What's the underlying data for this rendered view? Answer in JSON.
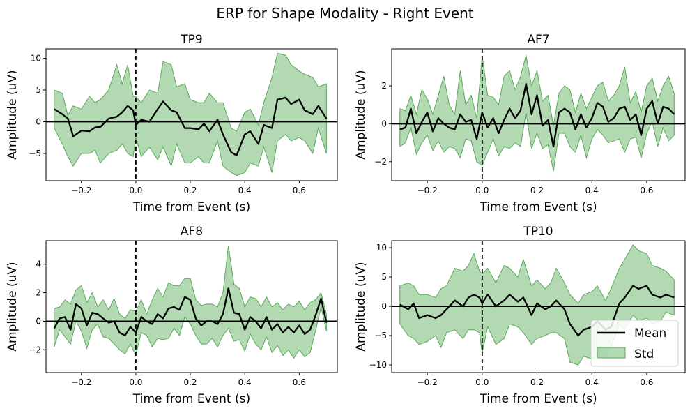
{
  "figure": {
    "suptitle": "ERP for Shape Modality - Right Event"
  },
  "legend": {
    "mean_label": "Mean",
    "std_label": "Std",
    "placement": "lower-right (TP10 panel)"
  },
  "colors": {
    "mean": "#000000",
    "std_fill": "#73b973",
    "std_edge": "#5aa85a",
    "zero_line": "#000000",
    "event_line": "#000000"
  },
  "chart_data": [
    {
      "type": "line",
      "title": "TP9",
      "xlabel": "Time from Event (s)",
      "ylabel": "Amplitude (uV)",
      "xlim": [
        -0.33,
        0.74
      ],
      "ylim": [
        -9.3,
        11.5
      ],
      "xticks": [
        -0.2,
        0.0,
        0.2,
        0.4,
        0.6
      ],
      "xtick_labels": [
        "−0.2",
        "0.0",
        "0.2",
        "0.4",
        "0.6"
      ],
      "yticks": [
        -5,
        0,
        5,
        10
      ],
      "ytick_labels": [
        "−5",
        "0",
        "5",
        "10"
      ],
      "event_line_x": 0.0,
      "zero_line_y": 0,
      "x": [
        -0.3,
        -0.27,
        -0.25,
        -0.23,
        -0.2,
        -0.17,
        -0.15,
        -0.13,
        -0.1,
        -0.07,
        -0.05,
        -0.03,
        -0.01,
        0.0,
        0.02,
        0.05,
        0.08,
        0.1,
        0.13,
        0.15,
        0.18,
        0.2,
        0.23,
        0.25,
        0.27,
        0.3,
        0.32,
        0.35,
        0.37,
        0.4,
        0.42,
        0.45,
        0.47,
        0.5,
        0.52,
        0.55,
        0.57,
        0.6,
        0.62,
        0.65,
        0.67,
        0.7
      ],
      "mean": [
        2.0,
        1.2,
        0.5,
        -2.3,
        -1.4,
        -1.5,
        -0.9,
        -0.8,
        0.5,
        0.8,
        1.5,
        2.5,
        1.8,
        -0.5,
        0.3,
        0.0,
        2.0,
        3.2,
        1.8,
        1.5,
        -1.0,
        -1.0,
        -1.2,
        -0.3,
        -1.5,
        0.3,
        -2.0,
        -4.8,
        -5.3,
        -2.0,
        -1.5,
        -3.5,
        -0.5,
        -1.0,
        3.5,
        3.8,
        2.8,
        3.5,
        1.8,
        1.2,
        2.5,
        0.5
      ],
      "upper": [
        5.0,
        4.5,
        1.0,
        2.5,
        2.0,
        4.0,
        3.0,
        3.5,
        5.0,
        9.0,
        6.0,
        9.0,
        4.0,
        4.0,
        3.0,
        5.0,
        4.5,
        9.5,
        9.0,
        5.5,
        6.0,
        3.5,
        3.0,
        3.0,
        4.5,
        3.0,
        3.0,
        -1.0,
        -1.5,
        1.5,
        2.0,
        -0.5,
        3.0,
        7.0,
        10.8,
        10.5,
        9.0,
        8.0,
        7.5,
        7.0,
        5.5,
        6.0
      ],
      "lower": [
        -1.0,
        -3.5,
        -5.5,
        -7.0,
        -5.0,
        -5.0,
        -4.5,
        -6.5,
        -5.0,
        -4.5,
        -3.5,
        -5.0,
        -5.5,
        -2.5,
        -5.5,
        -4.0,
        -6.0,
        -4.0,
        -7.0,
        -3.5,
        -6.5,
        -6.5,
        -5.5,
        -6.5,
        -6.5,
        -3.0,
        -7.0,
        -8.0,
        -8.5,
        -8.0,
        -6.5,
        -7.0,
        -4.0,
        -8.0,
        -3.0,
        -2.0,
        -3.0,
        -2.5,
        -3.0,
        -5.0,
        -1.0,
        -5.0
      ]
    },
    {
      "type": "line",
      "title": "AF7",
      "xlabel": "Time from Event (s)",
      "ylabel": "Amplitude (uV)",
      "xlim": [
        -0.33,
        0.74
      ],
      "ylim": [
        -3.0,
        3.95
      ],
      "xticks": [
        -0.2,
        0.0,
        0.2,
        0.4,
        0.6
      ],
      "xtick_labels": [
        "−0.2",
        "0.0",
        "0.2",
        "0.4",
        "0.6"
      ],
      "yticks": [
        -2,
        0,
        2
      ],
      "ytick_labels": [
        "−2",
        "0",
        "2"
      ],
      "event_line_x": 0.0,
      "zero_line_y": 0,
      "x": [
        -0.3,
        -0.28,
        -0.26,
        -0.24,
        -0.22,
        -0.2,
        -0.18,
        -0.16,
        -0.14,
        -0.12,
        -0.1,
        -0.08,
        -0.06,
        -0.04,
        -0.02,
        0.0,
        0.02,
        0.04,
        0.06,
        0.08,
        0.1,
        0.12,
        0.14,
        0.16,
        0.18,
        0.2,
        0.22,
        0.24,
        0.26,
        0.28,
        0.3,
        0.32,
        0.34,
        0.36,
        0.38,
        0.4,
        0.42,
        0.44,
        0.46,
        0.48,
        0.5,
        0.52,
        0.54,
        0.56,
        0.58,
        0.6,
        0.62,
        0.64,
        0.66,
        0.68,
        0.7
      ],
      "mean": [
        -0.3,
        -0.2,
        0.8,
        -0.5,
        0.1,
        0.6,
        -0.4,
        0.3,
        0.0,
        -0.2,
        -0.3,
        0.5,
        0.1,
        0.2,
        -0.8,
        0.6,
        -0.2,
        0.3,
        -0.5,
        0.2,
        0.8,
        0.3,
        0.7,
        2.1,
        0.5,
        1.5,
        -0.1,
        0.2,
        -1.2,
        0.6,
        0.8,
        0.6,
        -0.3,
        0.5,
        -0.2,
        0.3,
        1.1,
        0.9,
        0.1,
        0.3,
        0.8,
        0.9,
        0.2,
        0.5,
        -0.6,
        0.8,
        1.2,
        0.0,
        0.9,
        0.8,
        0.5
      ],
      "upper": [
        0.8,
        0.7,
        1.5,
        0.5,
        1.8,
        1.3,
        0.5,
        1.5,
        2.5,
        1.0,
        0.5,
        2.8,
        1.0,
        1.5,
        0.3,
        3.6,
        1.5,
        1.4,
        1.0,
        2.5,
        2.8,
        1.8,
        2.5,
        3.6,
        2.0,
        2.8,
        1.2,
        1.5,
        -0.1,
        1.6,
        2.0,
        1.8,
        0.6,
        1.6,
        0.8,
        1.4,
        2.0,
        2.2,
        1.2,
        1.5,
        2.0,
        3.0,
        1.1,
        1.7,
        0.6,
        2.0,
        2.4,
        1.2,
        2.0,
        2.5,
        1.6
      ],
      "lower": [
        -1.2,
        -1.0,
        -0.2,
        -1.6,
        -1.0,
        -0.6,
        -1.4,
        -0.9,
        -1.5,
        -1.2,
        -1.3,
        -1.8,
        -0.8,
        -0.9,
        -2.0,
        -2.2,
        -1.5,
        -0.8,
        -1.7,
        -1.2,
        -1.3,
        -1.0,
        -1.2,
        0.6,
        -1.3,
        -0.5,
        -1.3,
        -1.1,
        -2.5,
        -0.5,
        -0.5,
        -1.2,
        -1.5,
        -0.6,
        -1.8,
        -0.8,
        -0.3,
        -0.6,
        -1.0,
        -0.9,
        -0.8,
        -1.5,
        -0.8,
        -0.7,
        -1.8,
        -0.5,
        0.1,
        -1.2,
        -0.2,
        -0.9,
        -0.6
      ]
    },
    {
      "type": "line",
      "title": "AF8",
      "xlabel": "Time from Event (s)",
      "ylabel": "Amplitude (uV)",
      "xlim": [
        -0.33,
        0.74
      ],
      "ylim": [
        -3.6,
        5.65
      ],
      "xticks": [
        -0.2,
        0.0,
        0.2,
        0.4,
        0.6
      ],
      "xtick_labels": [
        "−0.2",
        "0.0",
        "0.2",
        "0.4",
        "0.6"
      ],
      "yticks": [
        -2,
        0,
        2,
        4
      ],
      "ytick_labels": [
        "−2",
        "0",
        "2",
        "4"
      ],
      "event_line_x": 0.0,
      "zero_line_y": 0,
      "x": [
        -0.3,
        -0.28,
        -0.26,
        -0.24,
        -0.22,
        -0.2,
        -0.18,
        -0.16,
        -0.14,
        -0.12,
        -0.1,
        -0.08,
        -0.06,
        -0.04,
        -0.02,
        0.0,
        0.02,
        0.04,
        0.06,
        0.08,
        0.1,
        0.12,
        0.14,
        0.16,
        0.18,
        0.2,
        0.22,
        0.24,
        0.26,
        0.28,
        0.3,
        0.32,
        0.34,
        0.36,
        0.38,
        0.4,
        0.42,
        0.44,
        0.46,
        0.48,
        0.5,
        0.52,
        0.54,
        0.56,
        0.58,
        0.6,
        0.62,
        0.64,
        0.66,
        0.68,
        0.7
      ],
      "mean": [
        -0.5,
        0.2,
        0.3,
        -0.6,
        1.2,
        0.9,
        -0.3,
        0.6,
        0.5,
        0.2,
        -0.1,
        0.0,
        -0.8,
        -1.0,
        -0.4,
        -0.8,
        0.3,
        0.0,
        -0.2,
        0.5,
        0.2,
        0.9,
        1.0,
        0.8,
        1.7,
        1.5,
        0.2,
        -0.3,
        0.0,
        0.0,
        -0.2,
        0.5,
        2.3,
        0.6,
        0.5,
        -0.6,
        0.3,
        0.0,
        -0.5,
        0.3,
        -0.6,
        -0.2,
        -0.8,
        -0.4,
        -0.8,
        -0.3,
        -0.9,
        -0.6,
        0.4,
        1.6,
        -0.1
      ],
      "upper": [
        0.9,
        1.0,
        1.5,
        1.2,
        2.2,
        2.5,
        1.3,
        2.0,
        1.0,
        1.5,
        0.8,
        1.6,
        0.5,
        0.2,
        0.8,
        0.7,
        1.5,
        0.5,
        1.5,
        2.3,
        1.7,
        2.7,
        2.5,
        2.5,
        3.0,
        3.0,
        1.5,
        1.1,
        1.2,
        1.2,
        1.0,
        2.0,
        5.3,
        2.6,
        2.3,
        1.0,
        1.7,
        1.6,
        1.0,
        1.7,
        1.0,
        1.3,
        0.8,
        1.2,
        1.0,
        1.4,
        0.8,
        1.3,
        1.5,
        2.0,
        0.5
      ],
      "lower": [
        -1.8,
        -0.6,
        -1.1,
        -1.6,
        0.0,
        -0.7,
        -1.9,
        -0.6,
        -0.2,
        -1.1,
        -1.2,
        -1.6,
        -2.0,
        -2.3,
        -1.6,
        -2.4,
        -0.8,
        -1.0,
        -1.8,
        -1.2,
        -1.3,
        -1.2,
        -0.5,
        -1.0,
        0.3,
        -0.2,
        -1.0,
        -1.6,
        -1.6,
        -1.2,
        -1.8,
        -1.0,
        -0.5,
        -1.4,
        -1.3,
        -2.1,
        -0.9,
        -1.6,
        -2.0,
        -1.1,
        -2.2,
        -1.7,
        -2.4,
        -2.0,
        -2.6,
        -2.0,
        -2.5,
        -2.2,
        -0.7,
        1.0,
        -0.7
      ]
    },
    {
      "type": "line",
      "title": "TP10",
      "xlabel": "Time from Event (s)",
      "ylabel": "Amplitude (uV)",
      "xlim": [
        -0.33,
        0.74
      ],
      "ylim": [
        -11.3,
        11.2
      ],
      "xticks": [
        -0.2,
        0.0,
        0.2,
        0.4,
        0.6
      ],
      "xtick_labels": [
        "−0.2",
        "0.0",
        "0.2",
        "0.4",
        "0.6"
      ],
      "yticks": [
        -10,
        -5,
        0,
        5,
        10
      ],
      "ytick_labels": [
        "−10",
        "−5",
        "0",
        "5",
        "10"
      ],
      "event_line_x": 0.0,
      "zero_line_y": 0,
      "x": [
        -0.3,
        -0.27,
        -0.25,
        -0.23,
        -0.2,
        -0.17,
        -0.15,
        -0.13,
        -0.1,
        -0.07,
        -0.05,
        -0.03,
        -0.01,
        0.0,
        0.02,
        0.05,
        0.08,
        0.1,
        0.13,
        0.15,
        0.18,
        0.2,
        0.23,
        0.25,
        0.27,
        0.3,
        0.32,
        0.35,
        0.37,
        0.4,
        0.42,
        0.45,
        0.47,
        0.5,
        0.52,
        0.55,
        0.57,
        0.6,
        0.62,
        0.65,
        0.67,
        0.7
      ],
      "mean": [
        0.3,
        -0.5,
        0.5,
        -2.0,
        -1.5,
        -2.0,
        -1.5,
        -0.5,
        1.0,
        0.0,
        1.5,
        2.0,
        1.5,
        0.5,
        2.0,
        0.0,
        1.0,
        2.0,
        0.8,
        1.5,
        -1.5,
        0.5,
        -0.5,
        0.0,
        1.0,
        -0.5,
        -3.0,
        -5.0,
        -4.0,
        -3.5,
        -2.5,
        -4.0,
        -3.5,
        0.5,
        1.5,
        3.5,
        3.0,
        3.5,
        2.0,
        1.5,
        2.0,
        1.5
      ],
      "upper": [
        3.5,
        4.0,
        3.5,
        2.0,
        2.0,
        1.5,
        3.0,
        3.5,
        6.5,
        6.0,
        7.0,
        9.0,
        6.0,
        5.5,
        6.5,
        4.0,
        7.0,
        6.5,
        5.0,
        8.0,
        3.5,
        4.5,
        3.0,
        4.0,
        6.5,
        4.0,
        2.0,
        0.5,
        2.0,
        2.5,
        3.5,
        1.0,
        3.0,
        6.5,
        8.0,
        10.5,
        9.5,
        9.0,
        7.0,
        6.5,
        6.0,
        4.5
      ],
      "lower": [
        -3.0,
        -5.0,
        -5.5,
        -6.5,
        -6.0,
        -5.0,
        -7.0,
        -4.5,
        -4.0,
        -5.5,
        -4.0,
        -4.0,
        -4.5,
        -8.0,
        -3.5,
        -6.5,
        -5.5,
        -3.0,
        -3.5,
        -4.5,
        -6.5,
        -5.5,
        -5.0,
        -4.5,
        -4.5,
        -5.5,
        -9.5,
        -10.0,
        -8.5,
        -9.0,
        -8.5,
        -8.5,
        -7.0,
        -3.0,
        -4.0,
        -1.5,
        -2.5,
        -2.0,
        -3.0,
        -2.5,
        -1.0,
        -1.5
      ]
    }
  ]
}
